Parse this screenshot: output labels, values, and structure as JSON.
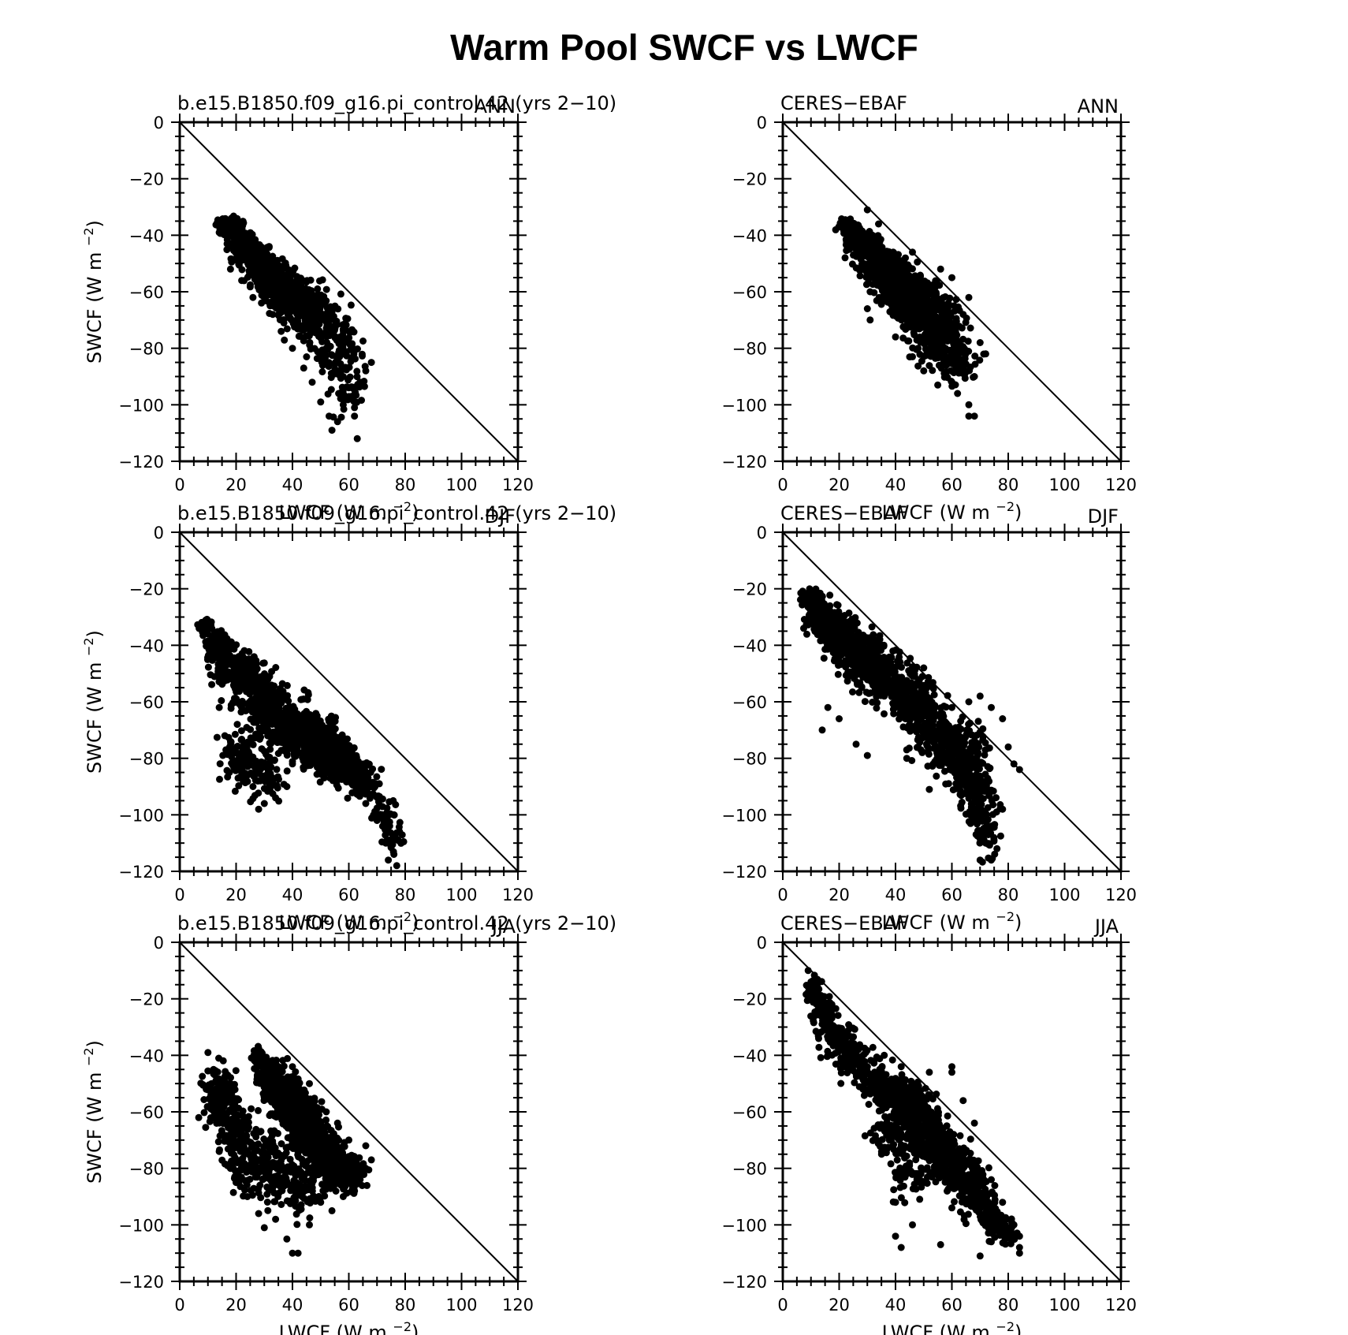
{
  "figure": {
    "title": "Warm Pool SWCF vs LWCF",
    "xlabel": "LWCF (W m",
    "ylabel": "SWCF (W m",
    "unit_exponent": "−2",
    "reference_line": "y = -x",
    "colors": {
      "marker": "#000000",
      "axes": "#000000",
      "background": "#ffffff"
    }
  },
  "chart_data": [
    {
      "type": "scatter",
      "left_title": "b.e15.B1850.f09_g16.pi_control.42 (yrs 2−10)",
      "right_title": "ANN",
      "xlim": [
        0,
        120
      ],
      "ylim": [
        -120,
        0
      ],
      "xticks": [
        0,
        20,
        40,
        60,
        80,
        100,
        120
      ],
      "yticks": [
        0,
        -20,
        -40,
        -60,
        -80,
        -100,
        -120
      ],
      "xlabel": "LWCF (W m−2)",
      "ylabel": "SWCF (W m−2)",
      "grid": false,
      "legend": "none",
      "cloud": [
        [
          18,
          -37,
          4,
          3,
          120
        ],
        [
          24,
          -45,
          5,
          4,
          180
        ],
        [
          30,
          -52,
          6,
          5,
          220
        ],
        [
          36,
          -58,
          7,
          6,
          220
        ],
        [
          42,
          -64,
          8,
          6,
          160
        ],
        [
          48,
          -70,
          9,
          7,
          110
        ],
        [
          55,
          -78,
          8,
          8,
          70
        ],
        [
          58,
          -88,
          7,
          8,
          45
        ],
        [
          60,
          -96,
          5,
          7,
          25
        ]
      ],
      "points": [
        [
          18,
          -37
        ],
        [
          20,
          -40
        ],
        [
          25,
          -46
        ],
        [
          30,
          -52
        ],
        [
          36,
          -58
        ],
        [
          44,
          -66
        ],
        [
          48,
          -72
        ],
        [
          52,
          -80
        ],
        [
          56,
          -84
        ],
        [
          58,
          -90
        ],
        [
          60,
          -94
        ],
        [
          61,
          -97
        ],
        [
          62,
          -101
        ],
        [
          63,
          -112
        ],
        [
          54,
          -109
        ],
        [
          50,
          -99
        ],
        [
          47,
          -92
        ],
        [
          44,
          -87
        ],
        [
          40,
          -80
        ],
        [
          36,
          -74
        ],
        [
          33,
          -68
        ],
        [
          29,
          -64
        ],
        [
          26,
          -62
        ],
        [
          22,
          -56
        ],
        [
          18,
          -52
        ],
        [
          68,
          -85
        ],
        [
          66,
          -88
        ],
        [
          64,
          -92
        ],
        [
          58,
          -100
        ],
        [
          56,
          -106
        ],
        [
          53,
          -104
        ],
        [
          62,
          -104
        ]
      ]
    },
    {
      "type": "scatter",
      "left_title": "CERES−EBAF",
      "right_title": "ANN",
      "xlim": [
        0,
        120
      ],
      "ylim": [
        -120,
        0
      ],
      "xticks": [
        0,
        20,
        40,
        60,
        80,
        100,
        120
      ],
      "yticks": [
        0,
        -20,
        -40,
        -60,
        -80,
        -100,
        -120
      ],
      "xlabel": "LWCF (W m−2)",
      "ylabel": "SWCF (W m−2)",
      "grid": false,
      "legend": "none",
      "cloud": [
        [
          23,
          -37,
          3,
          2,
          80
        ],
        [
          28,
          -43,
          5,
          4,
          160
        ],
        [
          34,
          -50,
          6,
          5,
          220
        ],
        [
          40,
          -56,
          7,
          6,
          260
        ],
        [
          46,
          -62,
          8,
          7,
          260
        ],
        [
          51,
          -68,
          8,
          8,
          200
        ],
        [
          55,
          -74,
          8,
          8,
          140
        ],
        [
          58,
          -80,
          7,
          7,
          90
        ],
        [
          62,
          -86,
          6,
          6,
          50
        ]
      ],
      "points": [
        [
          21,
          -35
        ],
        [
          30,
          -31
        ],
        [
          34,
          -36
        ],
        [
          46,
          -46
        ],
        [
          56,
          -52
        ],
        [
          60,
          -55
        ],
        [
          66,
          -62
        ],
        [
          72,
          -82
        ],
        [
          68,
          -90
        ],
        [
          66,
          -104
        ],
        [
          68,
          -104
        ],
        [
          62,
          -96
        ],
        [
          55,
          -93
        ],
        [
          50,
          -88
        ],
        [
          46,
          -83
        ],
        [
          40,
          -76
        ],
        [
          31,
          -70
        ],
        [
          30,
          -66
        ],
        [
          31,
          -60
        ],
        [
          36,
          -58
        ],
        [
          64,
          -68
        ],
        [
          70,
          -78
        ],
        [
          58,
          -86
        ],
        [
          60,
          -92
        ],
        [
          66,
          -100
        ],
        [
          48,
          -80
        ],
        [
          44,
          -72
        ],
        [
          35,
          -63
        ]
      ]
    },
    {
      "type": "scatter",
      "left_title": "b.e15.B1850.f09_g16.pi_control.42 (yrs 2−10)",
      "right_title": "DJF",
      "xlim": [
        0,
        120
      ],
      "ylim": [
        -120,
        0
      ],
      "xticks": [
        0,
        20,
        40,
        60,
        80,
        100,
        120
      ],
      "yticks": [
        0,
        -20,
        -40,
        -60,
        -80,
        -100,
        -120
      ],
      "xlabel": "LWCF (W m−2)",
      "ylabel": "SWCF (W m−2)",
      "grid": false,
      "legend": "none",
      "cloud": [
        [
          9,
          -33,
          2,
          2,
          60
        ],
        [
          14,
          -40,
          4,
          4,
          120
        ],
        [
          20,
          -48,
          6,
          5,
          140
        ],
        [
          26,
          -55,
          7,
          7,
          150
        ],
        [
          32,
          -62,
          8,
          8,
          150
        ],
        [
          38,
          -68,
          8,
          8,
          140
        ],
        [
          45,
          -72,
          8,
          7,
          160
        ],
        [
          50,
          -76,
          7,
          7,
          240
        ],
        [
          55,
          -80,
          6,
          6,
          220
        ],
        [
          60,
          -84,
          6,
          5,
          120
        ],
        [
          66,
          -90,
          5,
          5,
          60
        ],
        [
          72,
          -100,
          4,
          5,
          30
        ],
        [
          76,
          -108,
          3,
          5,
          30
        ],
        [
          22,
          -80,
          6,
          8,
          100
        ],
        [
          30,
          -86,
          6,
          8,
          60
        ]
      ],
      "points": [
        [
          8,
          -32
        ],
        [
          10,
          -36
        ],
        [
          12,
          -44
        ],
        [
          14,
          -62
        ],
        [
          16,
          -72
        ],
        [
          18,
          -74
        ],
        [
          20,
          -78
        ],
        [
          24,
          -86
        ],
        [
          26,
          -90
        ],
        [
          28,
          -98
        ],
        [
          30,
          -96
        ],
        [
          34,
          -94
        ],
        [
          38,
          -90
        ],
        [
          40,
          -82
        ],
        [
          44,
          -78
        ],
        [
          50,
          -70
        ],
        [
          54,
          -74
        ],
        [
          58,
          -80
        ],
        [
          62,
          -88
        ],
        [
          66,
          -96
        ],
        [
          70,
          -102
        ],
        [
          74,
          -110
        ],
        [
          76,
          -114
        ],
        [
          77,
          -118
        ],
        [
          78,
          -106
        ],
        [
          76,
          -100
        ],
        [
          72,
          -104
        ],
        [
          74,
          -116
        ]
      ]
    },
    {
      "type": "scatter",
      "left_title": "CERES−EBAF",
      "right_title": "DJF",
      "xlim": [
        0,
        120
      ],
      "ylim": [
        -120,
        0
      ],
      "xticks": [
        0,
        20,
        40,
        60,
        80,
        100,
        120
      ],
      "yticks": [
        0,
        -20,
        -40,
        -60,
        -80,
        -100,
        -120
      ],
      "xlabel": "LWCF (W m−2)",
      "ylabel": "SWCF (W m−2)",
      "grid": false,
      "legend": "none",
      "cloud": [
        [
          10,
          -24,
          3,
          3,
          120
        ],
        [
          14,
          -30,
          5,
          5,
          160
        ],
        [
          20,
          -36,
          6,
          6,
          160
        ],
        [
          26,
          -42,
          7,
          7,
          160
        ],
        [
          32,
          -48,
          8,
          8,
          150
        ],
        [
          40,
          -55,
          8,
          8,
          140
        ],
        [
          48,
          -62,
          8,
          8,
          130
        ],
        [
          54,
          -70,
          8,
          8,
          120
        ],
        [
          60,
          -78,
          7,
          8,
          110
        ],
        [
          66,
          -86,
          6,
          8,
          100
        ],
        [
          70,
          -96,
          5,
          8,
          80
        ],
        [
          72,
          -106,
          4,
          7,
          50
        ],
        [
          66,
          -78,
          8,
          10,
          70
        ]
      ],
      "points": [
        [
          8,
          -22
        ],
        [
          10,
          -24
        ],
        [
          12,
          -30
        ],
        [
          14,
          -70
        ],
        [
          16,
          -62
        ],
        [
          20,
          -66
        ],
        [
          26,
          -75
        ],
        [
          30,
          -79
        ],
        [
          28,
          -55
        ],
        [
          36,
          -58
        ],
        [
          40,
          -60
        ],
        [
          44,
          -80
        ],
        [
          48,
          -70
        ],
        [
          52,
          -91
        ],
        [
          50,
          -48
        ],
        [
          60,
          -62
        ],
        [
          66,
          -60
        ],
        [
          70,
          -58
        ],
        [
          74,
          -62
        ],
        [
          78,
          -66
        ],
        [
          80,
          -76
        ],
        [
          82,
          -82
        ],
        [
          84,
          -84
        ],
        [
          78,
          -98
        ],
        [
          74,
          -104
        ],
        [
          72,
          -110
        ],
        [
          70,
          -116
        ],
        [
          74,
          -116
        ],
        [
          76,
          -112
        ],
        [
          68,
          -100
        ]
      ]
    },
    {
      "type": "scatter",
      "left_title": "b.e15.B1850.f09_g16.pi_control.42 (yrs 2−10)",
      "right_title": "JJA",
      "xlim": [
        0,
        120
      ],
      "ylim": [
        -120,
        0
      ],
      "xticks": [
        0,
        20,
        40,
        60,
        80,
        100,
        120
      ],
      "yticks": [
        0,
        -20,
        -40,
        -60,
        -80,
        -100,
        -120
      ],
      "xlabel": "LWCF (W m−2)",
      "ylabel": "SWCF (W m−2)",
      "grid": false,
      "legend": "none",
      "cloud": [
        [
          28,
          -40,
          2,
          2,
          60
        ],
        [
          32,
          -46,
          4,
          4,
          140
        ],
        [
          36,
          -52,
          5,
          5,
          160
        ],
        [
          40,
          -58,
          6,
          6,
          180
        ],
        [
          44,
          -64,
          6,
          6,
          180
        ],
        [
          48,
          -70,
          6,
          6,
          180
        ],
        [
          52,
          -76,
          6,
          6,
          180
        ],
        [
          56,
          -80,
          6,
          6,
          150
        ],
        [
          60,
          -82,
          5,
          5,
          100
        ],
        [
          14,
          -55,
          5,
          9,
          140
        ],
        [
          20,
          -68,
          6,
          10,
          120
        ],
        [
          28,
          -78,
          7,
          10,
          120
        ],
        [
          36,
          -82,
          7,
          10,
          100
        ],
        [
          44,
          -88,
          6,
          8,
          60
        ]
      ],
      "points": [
        [
          10,
          -39
        ],
        [
          12,
          -45
        ],
        [
          10,
          -52
        ],
        [
          14,
          -74
        ],
        [
          18,
          -80
        ],
        [
          20,
          -85
        ],
        [
          24,
          -90
        ],
        [
          28,
          -96
        ],
        [
          30,
          -101
        ],
        [
          34,
          -98
        ],
        [
          38,
          -105
        ],
        [
          40,
          -110
        ],
        [
          42,
          -110
        ],
        [
          46,
          -100
        ],
        [
          50,
          -92
        ],
        [
          54,
          -95
        ],
        [
          58,
          -90
        ],
        [
          62,
          -88
        ],
        [
          64,
          -84
        ],
        [
          66,
          -80
        ],
        [
          68,
          -77
        ],
        [
          66,
          -72
        ],
        [
          60,
          -70
        ],
        [
          56,
          -64
        ],
        [
          52,
          -60
        ],
        [
          46,
          -50
        ],
        [
          40,
          -44
        ]
      ]
    },
    {
      "type": "scatter",
      "left_title": "CERES−EBAF",
      "right_title": "JJA",
      "xlim": [
        0,
        120
      ],
      "ylim": [
        -120,
        0
      ],
      "xticks": [
        0,
        20,
        40,
        60,
        80,
        100,
        120
      ],
      "yticks": [
        0,
        -20,
        -40,
        -60,
        -80,
        -100,
        -120
      ],
      "xlabel": "LWCF (W m−2)",
      "ylabel": "SWCF (W m−2)",
      "grid": false,
      "legend": "none",
      "cloud": [
        [
          11,
          -18,
          3,
          5,
          40
        ],
        [
          15,
          -26,
          4,
          5,
          60
        ],
        [
          20,
          -34,
          5,
          5,
          70
        ],
        [
          26,
          -42,
          5,
          5,
          70
        ],
        [
          32,
          -48,
          5,
          5,
          80
        ],
        [
          40,
          -54,
          6,
          5,
          180
        ],
        [
          46,
          -60,
          6,
          6,
          180
        ],
        [
          52,
          -68,
          6,
          6,
          200
        ],
        [
          58,
          -76,
          6,
          6,
          200
        ],
        [
          64,
          -84,
          6,
          6,
          140
        ],
        [
          70,
          -92,
          5,
          5,
          90
        ],
        [
          76,
          -100,
          4,
          4,
          60
        ],
        [
          80,
          -104,
          3,
          3,
          30
        ],
        [
          38,
          -68,
          6,
          8,
          80
        ],
        [
          46,
          -82,
          6,
          8,
          60
        ]
      ],
      "points": [
        [
          9,
          -10
        ],
        [
          10,
          -14
        ],
        [
          12,
          -18
        ],
        [
          14,
          -22
        ],
        [
          30,
          -44
        ],
        [
          36,
          -40
        ],
        [
          42,
          -44
        ],
        [
          52,
          -46
        ],
        [
          60,
          -44
        ],
        [
          60,
          -46
        ],
        [
          64,
          -56
        ],
        [
          68,
          -64
        ],
        [
          40,
          -92
        ],
        [
          40,
          -104
        ],
        [
          42,
          -108
        ],
        [
          46,
          -100
        ],
        [
          56,
          -107
        ],
        [
          60,
          -94
        ],
        [
          66,
          -88
        ],
        [
          70,
          -90
        ],
        [
          74,
          -84
        ],
        [
          78,
          -92
        ],
        [
          82,
          -100
        ],
        [
          84,
          -104
        ],
        [
          84,
          -108
        ],
        [
          84,
          -110
        ],
        [
          70,
          -111
        ],
        [
          74,
          -106
        ]
      ]
    }
  ]
}
